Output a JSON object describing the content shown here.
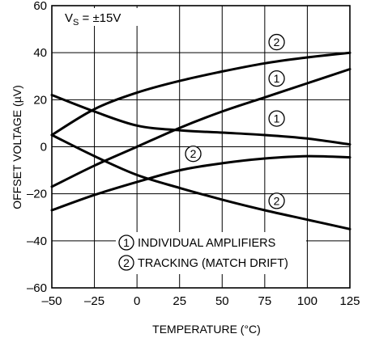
{
  "chart_data": {
    "type": "line",
    "annotation": {
      "prefix": "V",
      "subscript": "S",
      "suffix": " = ±15V"
    },
    "xlabel": "TEMPERATURE (°C)",
    "ylabel": "OFFSET VOLTAGE (µV)",
    "xlim": [
      -50,
      125
    ],
    "ylim": [
      -60,
      60
    ],
    "x_ticks": [
      -50,
      -25,
      0,
      25,
      50,
      75,
      100,
      125
    ],
    "y_ticks": [
      -60,
      -40,
      -20,
      0,
      20,
      40,
      60
    ],
    "x_tick_labels": [
      "–50",
      "–25",
      "0",
      "25",
      "50",
      "75",
      "100",
      "125"
    ],
    "y_tick_labels": [
      "–60",
      "–40",
      "–20",
      "0",
      "20",
      "40",
      "60"
    ],
    "grid": true,
    "legend": [
      {
        "marker": "1",
        "label": "INDIVIDUAL AMPLIFIERS"
      },
      {
        "marker": "2",
        "label": "TRACKING (MATCH DRIFT)"
      }
    ],
    "series": [
      {
        "marker": "2",
        "x": [
          -50,
          -25,
          0,
          25,
          50,
          75,
          100,
          125
        ],
        "y": [
          5,
          16,
          23,
          28,
          32,
          35.5,
          38,
          40
        ]
      },
      {
        "marker": "1",
        "x": [
          -50,
          -25,
          0,
          25,
          50,
          75,
          100,
          125
        ],
        "y": [
          -17,
          -8,
          0,
          8,
          15,
          21,
          27,
          33
        ]
      },
      {
        "marker": "1",
        "x": [
          -50,
          -25,
          0,
          25,
          50,
          75,
          100,
          125
        ],
        "y": [
          22,
          15,
          9,
          7,
          6,
          5,
          3.5,
          1
        ]
      },
      {
        "marker": "2",
        "x": [
          -50,
          -25,
          0,
          25,
          50,
          75,
          100,
          125
        ],
        "y": [
          -27,
          -20.5,
          -15,
          -10,
          -7,
          -5,
          -4,
          -4.5
        ]
      },
      {
        "marker": "2",
        "x": [
          -50,
          -25,
          0,
          25,
          50,
          75,
          100,
          125
        ],
        "y": [
          5,
          -4,
          -12,
          -17.5,
          -22.5,
          -27,
          -31,
          -35
        ]
      }
    ],
    "curve_labels": [
      {
        "marker": "2",
        "x": 82,
        "y": 44.5
      },
      {
        "marker": "1",
        "x": 82,
        "y": 29
      },
      {
        "marker": "1",
        "x": 82,
        "y": 12
      },
      {
        "marker": "2",
        "x": 33,
        "y": -3
      },
      {
        "marker": "2",
        "x": 82,
        "y": -23
      }
    ]
  }
}
